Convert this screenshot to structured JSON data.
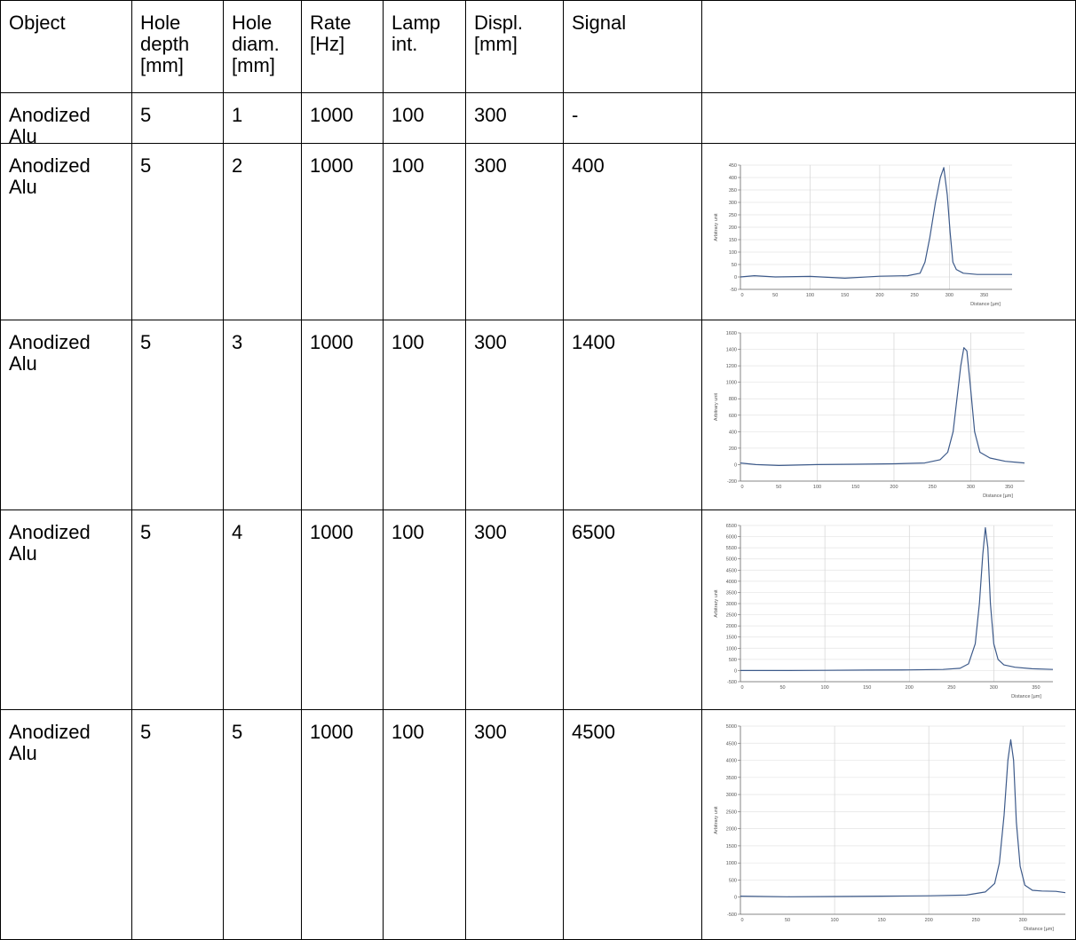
{
  "table": {
    "headers": [
      "Object",
      "Hole\ndepth\n[mm]",
      "Hole\ndiam.\n[mm]",
      "Rate\n[Hz]",
      "Lamp\nint.",
      "Displ.\n[mm]",
      "Signal"
    ],
    "rows": [
      {
        "cells": [
          "Anodized\nAlu",
          "5",
          "1",
          "1000",
          "100",
          "300",
          "-"
        ],
        "plot": null
      },
      {
        "cells": [
          "Anodized\nAlu",
          "5",
          "2",
          "1000",
          "100",
          "300",
          "400"
        ],
        "plot": 0
      },
      {
        "cells": [
          "Anodized\nAlu",
          "5",
          "3",
          "1000",
          "100",
          "300",
          "1400"
        ],
        "plot": 1
      },
      {
        "cells": [
          "Anodized\nAlu",
          "5",
          "4",
          "1000",
          "100",
          "300",
          "6500"
        ],
        "plot": 2
      },
      {
        "cells": [
          "Anodized\nAlu",
          "5",
          "5",
          "1000",
          "100",
          "300",
          "4500"
        ],
        "plot": 3
      }
    ]
  },
  "chart_data": [
    {
      "type": "line",
      "xlabel": "Distance [µm]",
      "ylabel": "Arbitrary unit",
      "xlim": [
        0,
        390
      ],
      "ylim": [
        -50,
        450
      ],
      "xticks": [
        0,
        50,
        100,
        150,
        200,
        250,
        300,
        350
      ],
      "xtick_labels": [
        "0",
        "50",
        "100",
        "150",
        "200",
        "250",
        "300",
        "350"
      ],
      "yticks": [
        -50,
        0,
        50,
        100,
        150,
        200,
        250,
        300,
        350,
        400,
        450
      ],
      "ytick_labels": [
        "-50",
        "0",
        "50",
        "100",
        "150",
        "200",
        "250",
        "300",
        "350",
        "400",
        "450"
      ],
      "xgrid": [
        100,
        200,
        300
      ],
      "line_color": "#3d5a8a",
      "series": [
        {
          "x": [
            0,
            20,
            50,
            100,
            150,
            200,
            240,
            258,
            265,
            272,
            280,
            287,
            292,
            297,
            301,
            305,
            310,
            320,
            340,
            390
          ],
          "values": [
            0,
            5,
            0,
            2,
            -5,
            3,
            5,
            15,
            60,
            160,
            300,
            400,
            440,
            330,
            180,
            60,
            30,
            15,
            10,
            10
          ]
        }
      ]
    },
    {
      "type": "line",
      "xlabel": "Distance [µm]",
      "ylabel": "Arbitrary unit",
      "xlim": [
        0,
        370
      ],
      "ylim": [
        -200,
        1600
      ],
      "xticks": [
        0,
        50,
        100,
        150,
        200,
        250,
        300,
        350
      ],
      "xtick_labels": [
        "0",
        "50",
        "100",
        "150",
        "200",
        "250",
        "300",
        "350"
      ],
      "yticks": [
        -200,
        0,
        200,
        400,
        600,
        800,
        1000,
        1200,
        1400,
        1600
      ],
      "ytick_labels": [
        "-200",
        "0",
        "200",
        "400",
        "600",
        "800",
        "1000",
        "1200",
        "1400",
        "1600"
      ],
      "xgrid": [
        100,
        200,
        300
      ],
      "line_color": "#3d5a8a",
      "series": [
        {
          "x": [
            0,
            20,
            50,
            100,
            150,
            200,
            240,
            260,
            270,
            277,
            282,
            287,
            291,
            295,
            300,
            305,
            312,
            325,
            345,
            370
          ],
          "values": [
            20,
            0,
            -10,
            0,
            5,
            10,
            20,
            60,
            150,
            400,
            800,
            1200,
            1420,
            1380,
            900,
            400,
            150,
            80,
            40,
            20
          ]
        }
      ]
    },
    {
      "type": "line",
      "xlabel": "Distance [µm]",
      "ylabel": "Arbitrary unit",
      "xlim": [
        0,
        370
      ],
      "ylim": [
        -500,
        6500
      ],
      "xticks": [
        0,
        50,
        100,
        150,
        200,
        250,
        300,
        350
      ],
      "xtick_labels": [
        "0",
        "50",
        "100",
        "150",
        "200",
        "250",
        "300",
        "350"
      ],
      "yticks": [
        -500,
        0,
        500,
        1000,
        1500,
        2000,
        2500,
        3000,
        3500,
        4000,
        4500,
        5000,
        5500,
        6000,
        6500
      ],
      "ytick_labels": [
        "-500",
        "0",
        "500",
        "1000",
        "1500",
        "2000",
        "2500",
        "3000",
        "3500",
        "4000",
        "4500",
        "5000",
        "5500",
        "6000",
        "6500"
      ],
      "xgrid": [
        100,
        200,
        300
      ],
      "line_color": "#3d5a8a",
      "series": [
        {
          "x": [
            0,
            50,
            100,
            150,
            200,
            240,
            260,
            270,
            278,
            283,
            287,
            290,
            293,
            296,
            300,
            305,
            312,
            325,
            345,
            370
          ],
          "values": [
            0,
            0,
            10,
            20,
            30,
            50,
            100,
            300,
            1200,
            3000,
            5200,
            6400,
            5500,
            3000,
            1200,
            500,
            250,
            150,
            80,
            50
          ]
        }
      ]
    },
    {
      "type": "line",
      "xlabel": "Distance [µm]",
      "ylabel": "Arbitrary unit",
      "xlim": [
        0,
        345
      ],
      "ylim": [
        -500,
        5000
      ],
      "xticks": [
        0,
        50,
        100,
        150,
        200,
        250,
        300
      ],
      "xtick_labels": [
        "0",
        "50",
        "100",
        "150",
        "200",
        "250",
        "300"
      ],
      "yticks": [
        -500,
        0,
        500,
        1000,
        1500,
        2000,
        2500,
        3000,
        3500,
        4000,
        4500,
        5000
      ],
      "ytick_labels": [
        "-500",
        "0",
        "500",
        "1000",
        "1500",
        "2000",
        "2500",
        "3000",
        "3500",
        "4000",
        "4500",
        "5000"
      ],
      "xgrid": [
        100,
        200,
        300
      ],
      "line_color": "#3d5a8a",
      "series": [
        {
          "x": [
            0,
            50,
            100,
            150,
            200,
            240,
            260,
            270,
            275,
            280,
            284,
            287,
            290,
            293,
            297,
            302,
            310,
            320,
            335,
            345
          ],
          "values": [
            30,
            10,
            20,
            30,
            40,
            60,
            150,
            400,
            1000,
            2400,
            4000,
            4600,
            4000,
            2200,
            900,
            350,
            200,
            180,
            170,
            130
          ]
        }
      ]
    }
  ]
}
